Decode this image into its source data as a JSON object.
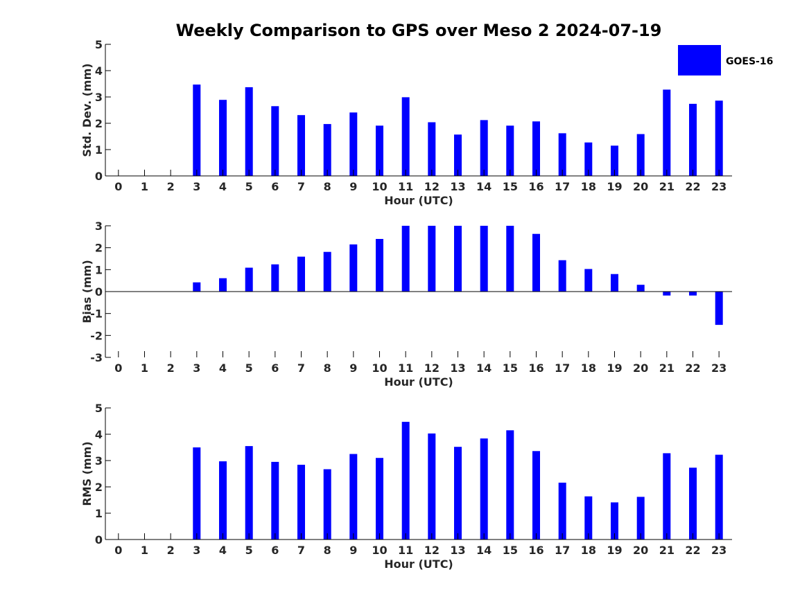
{
  "chart_data": {
    "title": "Weekly Comparison to GPS over Meso 2 2024-07-19",
    "series_name": "GOES-16",
    "bar_color": "#0000ff",
    "categories": [
      "0",
      "1",
      "2",
      "3",
      "4",
      "5",
      "6",
      "7",
      "8",
      "9",
      "10",
      "11",
      "12",
      "13",
      "14",
      "15",
      "16",
      "17",
      "18",
      "19",
      "20",
      "21",
      "22",
      "23"
    ],
    "panels": [
      {
        "type": "bar",
        "ylabel": "Std. Dev. (mm)",
        "xlabel": "Hour (UTC)",
        "ylim": [
          0,
          5
        ],
        "yticks": [
          "0",
          "1",
          "2",
          "3",
          "4",
          "5"
        ],
        "values": [
          null,
          null,
          null,
          3.47,
          2.89,
          3.37,
          2.65,
          2.31,
          1.97,
          2.41,
          1.91,
          2.99,
          2.04,
          1.57,
          2.12,
          1.91,
          2.07,
          1.62,
          1.27,
          1.15,
          1.59,
          3.28,
          2.74,
          2.86
        ]
      },
      {
        "type": "bar",
        "ylabel": "Bias (mm)",
        "xlabel": "Hour (UTC)",
        "ylim": [
          -3,
          3
        ],
        "yticks": [
          "-3",
          "-2",
          "-1",
          "0",
          "1",
          "2",
          "3"
        ],
        "values": [
          null,
          null,
          null,
          0.42,
          0.61,
          1.09,
          1.24,
          1.59,
          1.81,
          2.15,
          2.4,
          3.0,
          3.0,
          3.0,
          3.0,
          3.0,
          2.63,
          1.43,
          1.03,
          0.8,
          0.31,
          -0.18,
          -0.18,
          -1.52
        ]
      },
      {
        "type": "bar",
        "ylabel": "RMS (mm)",
        "xlabel": "Hour (UTC)",
        "ylim": [
          0,
          5
        ],
        "yticks": [
          "0",
          "1",
          "2",
          "3",
          "4",
          "5"
        ],
        "values": [
          null,
          null,
          null,
          3.5,
          2.97,
          3.55,
          2.95,
          2.84,
          2.67,
          3.25,
          3.1,
          4.47,
          4.03,
          3.52,
          3.84,
          4.15,
          3.36,
          2.16,
          1.64,
          1.41,
          1.62,
          3.28,
          2.73,
          3.22
        ]
      }
    ]
  }
}
